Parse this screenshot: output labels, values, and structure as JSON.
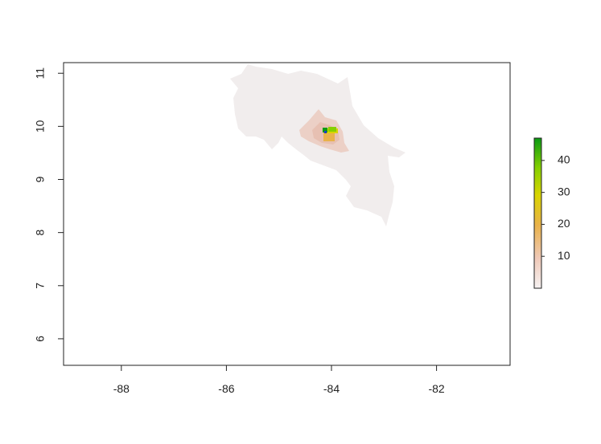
{
  "chart_data": {
    "type": "heatmap",
    "title": "",
    "xlabel": "",
    "ylabel": "",
    "xlim": [
      -89.1,
      -80.6
    ],
    "ylim": [
      5.5,
      11.2
    ],
    "x_ticks": [
      {
        "value": -88,
        "label": "-88"
      },
      {
        "value": -86,
        "label": "-86"
      },
      {
        "value": -84,
        "label": "-84"
      },
      {
        "value": -82,
        "label": "-82"
      }
    ],
    "y_ticks": [
      {
        "value": 6,
        "label": "6"
      },
      {
        "value": 7,
        "label": "7"
      },
      {
        "value": 8,
        "label": "8"
      },
      {
        "value": 9,
        "label": "9"
      },
      {
        "value": 10,
        "label": "10"
      },
      {
        "value": 11,
        "label": "11"
      }
    ],
    "legend": {
      "placement": "right",
      "min": 0,
      "max": 47,
      "ticks": [
        {
          "value": 10,
          "label": "10"
        },
        {
          "value": 20,
          "label": "20"
        },
        {
          "value": 30,
          "label": "30"
        },
        {
          "value": 40,
          "label": "40"
        }
      ],
      "colors": [
        "#f6f2f2",
        "#efc9b8",
        "#e9b24a",
        "#d9d400",
        "#86d000",
        "#0a9a14"
      ]
    },
    "hotspots": [
      {
        "lon": -84.05,
        "lat": 9.92,
        "value": 45
      },
      {
        "lon": -83.98,
        "lat": 9.88,
        "value": 28
      },
      {
        "lon": -84.1,
        "lat": 9.85,
        "value": 20
      }
    ],
    "grid": false
  }
}
